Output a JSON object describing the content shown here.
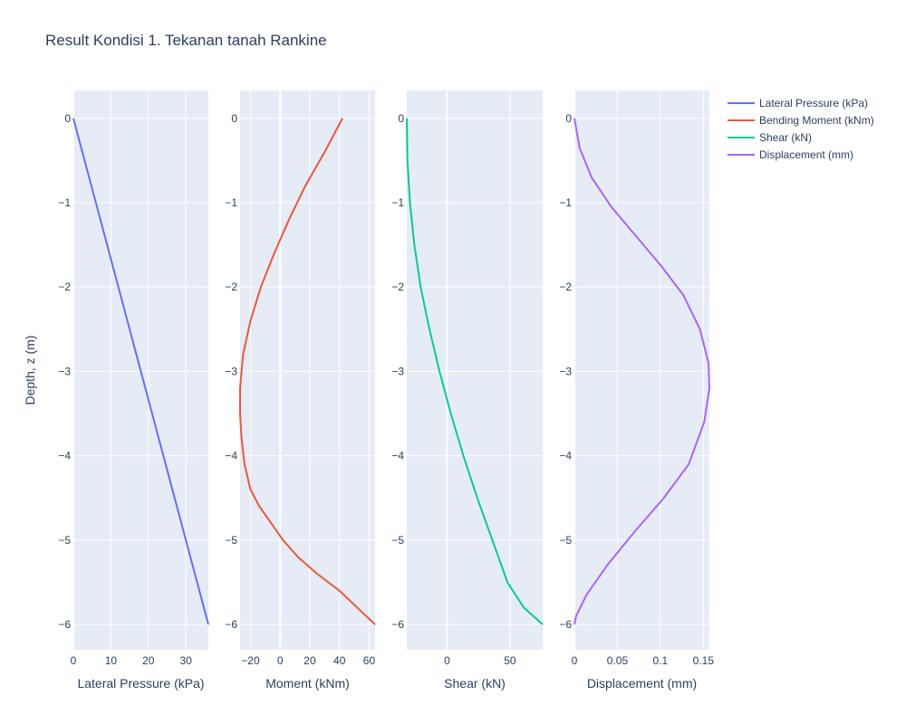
{
  "title": "Result Kondisi 1. Tekanan tanah Rankine",
  "y_axis_label": "Depth, z (m)",
  "colors": {
    "plot_bg": "#e5ecf6",
    "grid": "#ffffff",
    "text": "#2a3f5f",
    "lateral": "#636efa",
    "moment": "#ef553b",
    "shear": "#00cc96",
    "displacement": "#ab63fa"
  },
  "legend": [
    {
      "label": "Lateral Pressure (kPa)",
      "color": "#636efa"
    },
    {
      "label": "Bending Moment (kNm)",
      "color": "#ef553b"
    },
    {
      "label": "Shear (kN)",
      "color": "#00cc96"
    },
    {
      "label": "Displacement (mm)",
      "color": "#ab63fa"
    }
  ],
  "chart_data": [
    {
      "type": "line",
      "series_name": "Lateral Pressure (kPa)",
      "xlabel": "Lateral Pressure (kPa)",
      "ylabel": "Depth, z (m)",
      "xlim": [
        0,
        36
      ],
      "ylim": [
        -6.3,
        0.33
      ],
      "xticks": [
        0,
        10,
        20,
        30
      ],
      "yticks": [
        0,
        -1,
        -2,
        -3,
        -4,
        -5,
        -6
      ],
      "x": [
        0,
        36
      ],
      "y": [
        0,
        -6
      ]
    },
    {
      "type": "line",
      "series_name": "Bending Moment (kNm)",
      "xlabel": "Moment (kNm)",
      "ylabel": "",
      "xlim": [
        -27,
        64
      ],
      "ylim": [
        -6.3,
        0.33
      ],
      "xticks": [
        -20,
        0,
        20,
        40,
        60
      ],
      "yticks": [
        0,
        -1,
        -2,
        -3,
        -4,
        -5,
        -6
      ],
      "x": [
        42,
        30,
        17,
        6,
        -4,
        -13,
        -20,
        -25,
        -27,
        -27,
        -26,
        -24,
        -20,
        -14,
        -6,
        2,
        12,
        25,
        40,
        64
      ],
      "y": [
        0,
        -0.4,
        -0.8,
        -1.2,
        -1.6,
        -2.0,
        -2.4,
        -2.8,
        -3.2,
        -3.5,
        -3.8,
        -4.1,
        -4.4,
        -4.6,
        -4.8,
        -5.0,
        -5.2,
        -5.4,
        -5.6,
        -6.0
      ]
    },
    {
      "type": "line",
      "series_name": "Shear (kN)",
      "xlabel": "Shear (kN)",
      "ylabel": "",
      "xlim": [
        -32,
        76
      ],
      "ylim": [
        -6.3,
        0.33
      ],
      "xticks": [
        0,
        50
      ],
      "yticks": [
        0,
        -1,
        -2,
        -3,
        -4,
        -5,
        -6
      ],
      "x": [
        -32,
        -31.5,
        -29.5,
        -26,
        -21,
        -14,
        -6,
        3,
        13,
        24,
        36,
        48,
        61,
        76
      ],
      "y": [
        0,
        -0.5,
        -1.0,
        -1.5,
        -2.0,
        -2.5,
        -3.0,
        -3.5,
        -4.0,
        -4.5,
        -5.0,
        -5.5,
        -5.8,
        -6.0
      ]
    },
    {
      "type": "line",
      "series_name": "Displacement (mm)",
      "xlabel": "Displacement (mm)",
      "ylabel": "",
      "xlim": [
        0,
        0.157
      ],
      "ylim": [
        -6.3,
        0.33
      ],
      "xticks": [
        0,
        0.05,
        0.1,
        0.15
      ],
      "xticklabels": [
        "0",
        "0.05",
        "0.1",
        "0.15"
      ],
      "yticks": [
        0,
        -1,
        -2,
        -3,
        -4,
        -5,
        -6
      ],
      "x": [
        0,
        0.006,
        0.02,
        0.043,
        0.072,
        0.101,
        0.127,
        0.146,
        0.156,
        0.157,
        0.151,
        0.133,
        0.104,
        0.07,
        0.038,
        0.014,
        0.002,
        0
      ],
      "y": [
        0,
        -0.35,
        -0.7,
        -1.05,
        -1.4,
        -1.75,
        -2.1,
        -2.5,
        -2.9,
        -3.2,
        -3.6,
        -4.1,
        -4.5,
        -4.9,
        -5.3,
        -5.65,
        -5.9,
        -6.0
      ]
    }
  ]
}
